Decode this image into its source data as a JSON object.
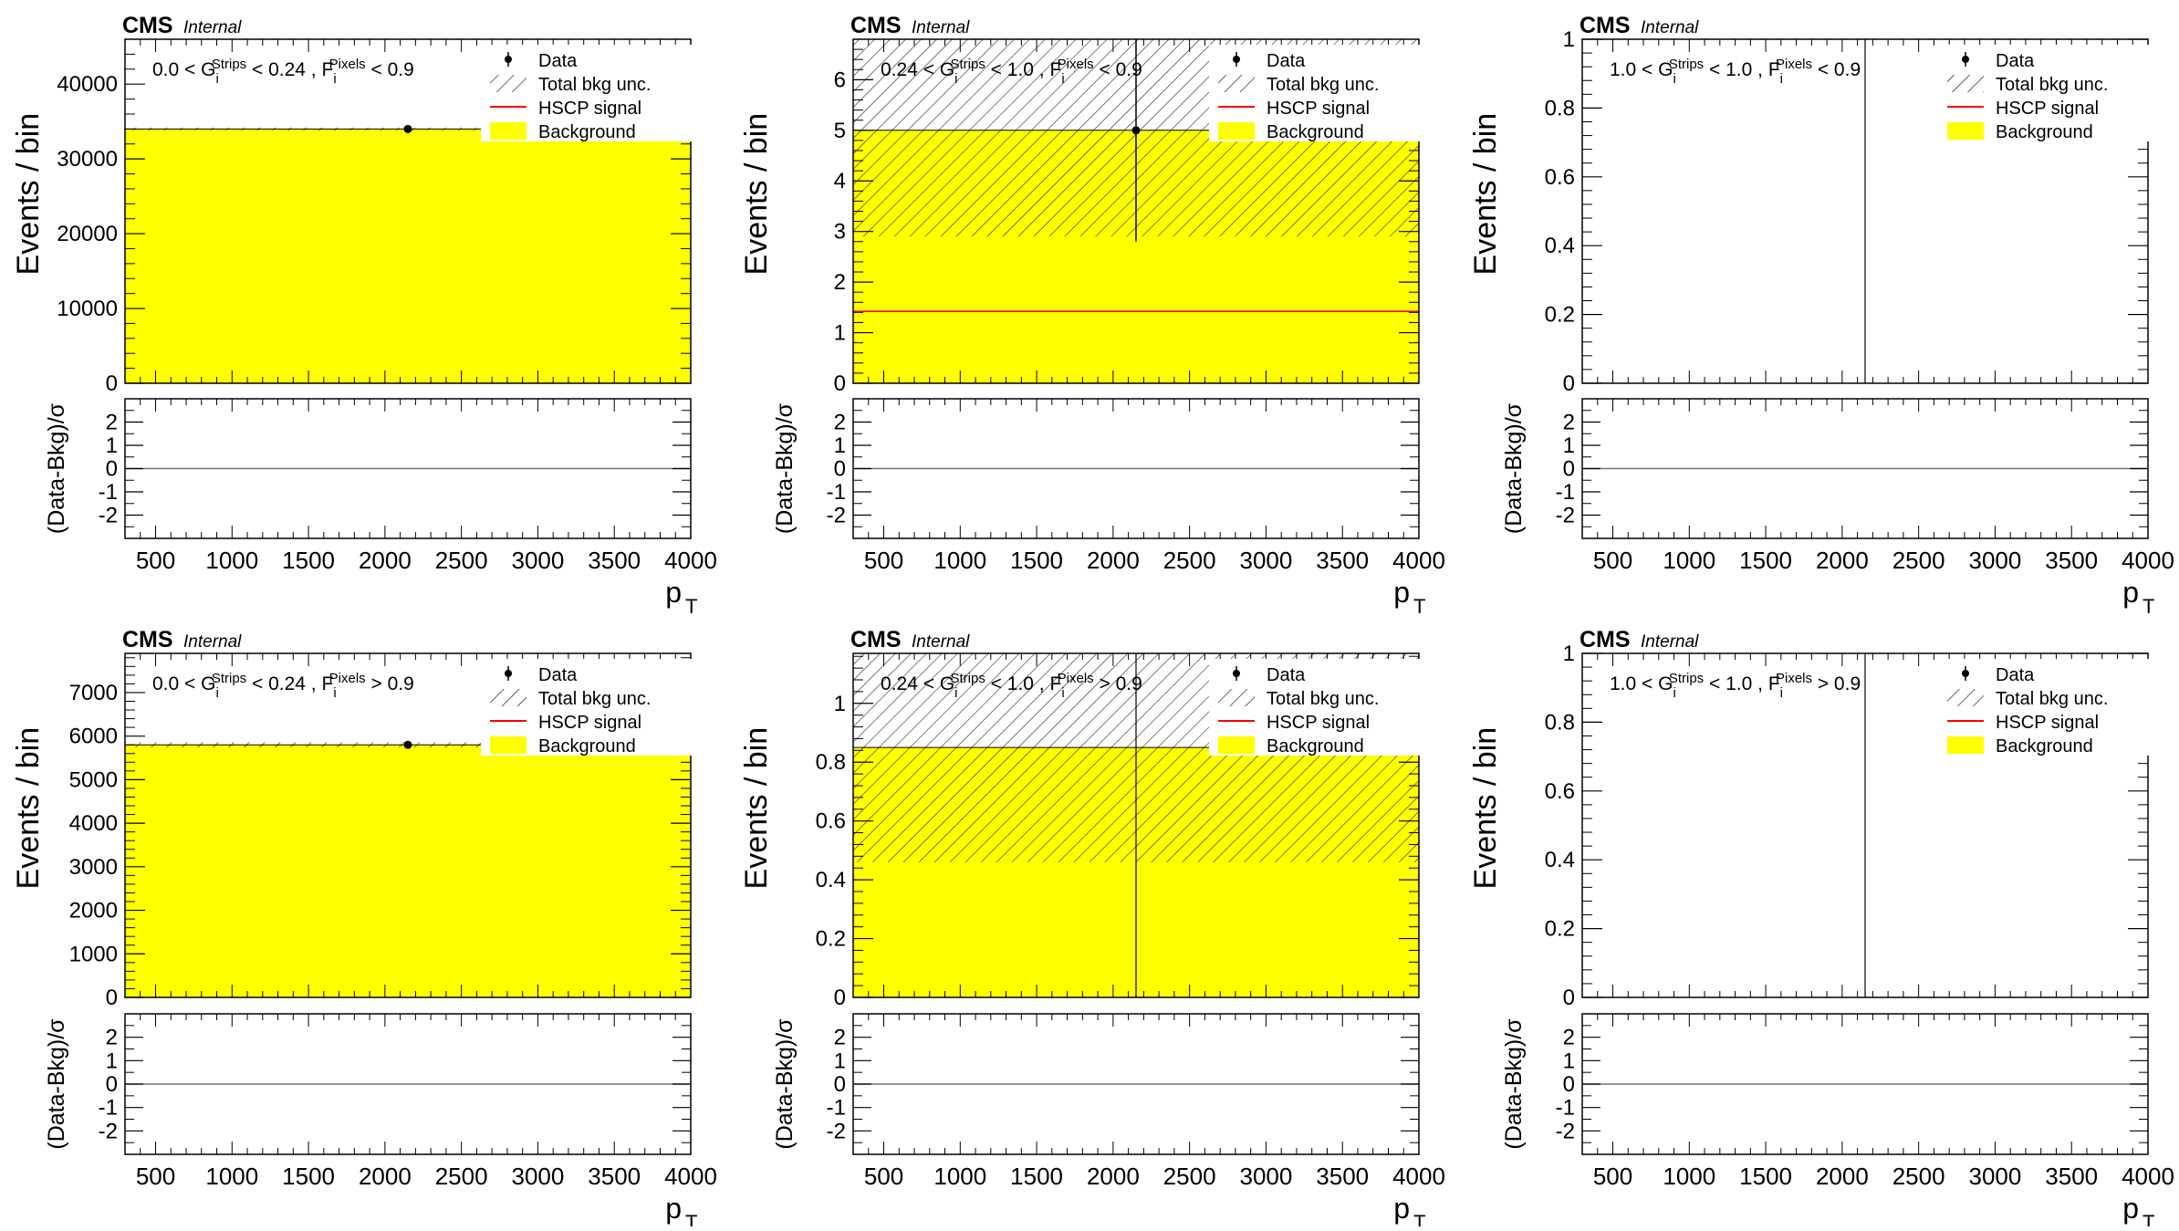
{
  "colors": {
    "background": "#ffff00",
    "signal": "#ff0000",
    "data": "#000000",
    "axis": "#000000"
  },
  "legend": [
    "Data",
    "Total bkg unc.",
    "HSCP signal",
    "Background"
  ],
  "chart_data": [
    {
      "type": "bar",
      "cms_label": "CMS",
      "internal_label": "Internal",
      "region": {
        "g_low": "0.0",
        "g_high": "0.24",
        "f_op": "<",
        "f_cut": "0.9",
        "g_sym": "G",
        "g_sub": "i",
        "g_sup": "Strips",
        "f_sym": "F",
        "f_sub": "i",
        "f_sup": "Pixels"
      },
      "xlabel": "p",
      "xlabel_sub": "T",
      "ylabel": "Events / bin",
      "ratio_ylabel": "(Data-Bkg)/σ",
      "xlim": [
        300,
        4000
      ],
      "ylim": [
        0,
        46000
      ],
      "x_ticks": [
        500,
        1000,
        1500,
        2000,
        2500,
        3000,
        3500,
        4000
      ],
      "y_ticks": [
        0,
        10000,
        20000,
        30000,
        40000
      ],
      "ratio_ylim": [
        -3,
        3
      ],
      "ratio_ticks": [
        -2,
        -1,
        0,
        1,
        2
      ],
      "background": 34000,
      "bkg_unc": [
        33800,
        34200
      ],
      "data_point": {
        "x": 2150,
        "y": 34000,
        "err": 184
      },
      "signal": null,
      "vline_x": null
    },
    {
      "type": "bar",
      "cms_label": "CMS",
      "internal_label": "Internal",
      "region": {
        "g_low": "0.24",
        "g_high": "1.0",
        "f_op": "<",
        "f_cut": "0.9",
        "g_sym": "G",
        "g_sub": "i",
        "g_sup": "Strips",
        "f_sym": "F",
        "f_sub": "i",
        "f_sup": "Pixels"
      },
      "xlabel": "p",
      "xlabel_sub": "T",
      "ylabel": "Events / bin",
      "ratio_ylabel": "(Data-Bkg)/σ",
      "xlim": [
        300,
        4000
      ],
      "ylim": [
        0,
        6.8
      ],
      "x_ticks": [
        500,
        1000,
        1500,
        2000,
        2500,
        3000,
        3500,
        4000
      ],
      "y_ticks": [
        0,
        1,
        2,
        3,
        4,
        5,
        6
      ],
      "ratio_ylim": [
        -3,
        3
      ],
      "ratio_ticks": [
        -2,
        -1,
        0,
        1,
        2
      ],
      "background": 5.0,
      "bkg_unc": [
        2.9,
        6.8
      ],
      "data_point": {
        "x": 2150,
        "y": 5.0,
        "err": 2.2
      },
      "signal": 1.42,
      "vline_x": null
    },
    {
      "type": "bar",
      "cms_label": "CMS",
      "internal_label": "Internal",
      "region": {
        "g_low": "1.0",
        "g_high": "1.0",
        "f_op": "<",
        "f_cut": "0.9",
        "g_sym": "G",
        "g_sub": "i",
        "g_sup": "Strips",
        "f_sym": "F",
        "f_sub": "i",
        "f_sup": "Pixels"
      },
      "xlabel": "p",
      "xlabel_sub": "T",
      "ylabel": "Events / bin",
      "ratio_ylabel": "(Data-Bkg)/σ",
      "xlim": [
        300,
        4000
      ],
      "ylim": [
        0,
        1
      ],
      "x_ticks": [
        500,
        1000,
        1500,
        2000,
        2500,
        3000,
        3500,
        4000
      ],
      "y_ticks": [
        0,
        0.2,
        0.4,
        0.6,
        0.8,
        1
      ],
      "ratio_ylim": [
        -3,
        3
      ],
      "ratio_ticks": [
        -2,
        -1,
        0,
        1,
        2
      ],
      "background": null,
      "bkg_unc": null,
      "data_point": null,
      "signal": null,
      "vline_x": 2150
    },
    {
      "type": "bar",
      "cms_label": "CMS",
      "internal_label": "Internal",
      "region": {
        "g_low": "0.0",
        "g_high": "0.24",
        "f_op": ">",
        "f_cut": "0.9",
        "g_sym": "G",
        "g_sub": "i",
        "g_sup": "Strips",
        "f_sym": "F",
        "f_sub": "i",
        "f_sup": "Pixels"
      },
      "xlabel": "p",
      "xlabel_sub": "T",
      "ylabel": "Events / bin",
      "ratio_ylabel": "(Data-Bkg)/σ",
      "xlim": [
        300,
        4000
      ],
      "ylim": [
        0,
        7900
      ],
      "x_ticks": [
        500,
        1000,
        1500,
        2000,
        2500,
        3000,
        3500,
        4000
      ],
      "y_ticks": [
        0,
        1000,
        2000,
        3000,
        4000,
        5000,
        6000,
        7000
      ],
      "ratio_ylim": [
        -3,
        3
      ],
      "ratio_ticks": [
        -2,
        -1,
        0,
        1,
        2
      ],
      "background": 5800,
      "bkg_unc": [
        5740,
        5860
      ],
      "data_point": {
        "x": 2150,
        "y": 5800,
        "err": 76
      },
      "signal": null,
      "vline_x": null
    },
    {
      "type": "bar",
      "cms_label": "CMS",
      "internal_label": "Internal",
      "region": {
        "g_low": "0.24",
        "g_high": "1.0",
        "f_op": ">",
        "f_cut": "0.9",
        "g_sym": "G",
        "g_sub": "i",
        "g_sup": "Strips",
        "f_sym": "F",
        "f_sub": "i",
        "f_sup": "Pixels"
      },
      "xlabel": "p",
      "xlabel_sub": "T",
      "ylabel": "Events / bin",
      "ratio_ylabel": "(Data-Bkg)/σ",
      "xlim": [
        300,
        4000
      ],
      "ylim": [
        0,
        1.17
      ],
      "x_ticks": [
        500,
        1000,
        1500,
        2000,
        2500,
        3000,
        3500,
        4000
      ],
      "y_ticks": [
        0,
        0.2,
        0.4,
        0.6,
        0.8,
        1
      ],
      "ratio_ylim": [
        -3,
        3
      ],
      "ratio_ticks": [
        -2,
        -1,
        0,
        1,
        2
      ],
      "background": 0.85,
      "bkg_unc": [
        0.46,
        1.17
      ],
      "data_point": null,
      "signal": null,
      "vline_x": 2150
    },
    {
      "type": "bar",
      "cms_label": "CMS",
      "internal_label": "Internal",
      "region": {
        "g_low": "1.0",
        "g_high": "1.0",
        "f_op": ">",
        "f_cut": "0.9",
        "g_sym": "G",
        "g_sub": "i",
        "g_sup": "Strips",
        "f_sym": "F",
        "f_sub": "i",
        "f_sup": "Pixels"
      },
      "xlabel": "p",
      "xlabel_sub": "T",
      "ylabel": "Events / bin",
      "ratio_ylabel": "(Data-Bkg)/σ",
      "xlim": [
        300,
        4000
      ],
      "ylim": [
        0,
        1
      ],
      "x_ticks": [
        500,
        1000,
        1500,
        2000,
        2500,
        3000,
        3500,
        4000
      ],
      "y_ticks": [
        0,
        0.2,
        0.4,
        0.6,
        0.8,
        1
      ],
      "ratio_ylim": [
        -3,
        3
      ],
      "ratio_ticks": [
        -2,
        -1,
        0,
        1,
        2
      ],
      "background": null,
      "bkg_unc": null,
      "data_point": null,
      "signal": null,
      "vline_x": 2150
    }
  ]
}
